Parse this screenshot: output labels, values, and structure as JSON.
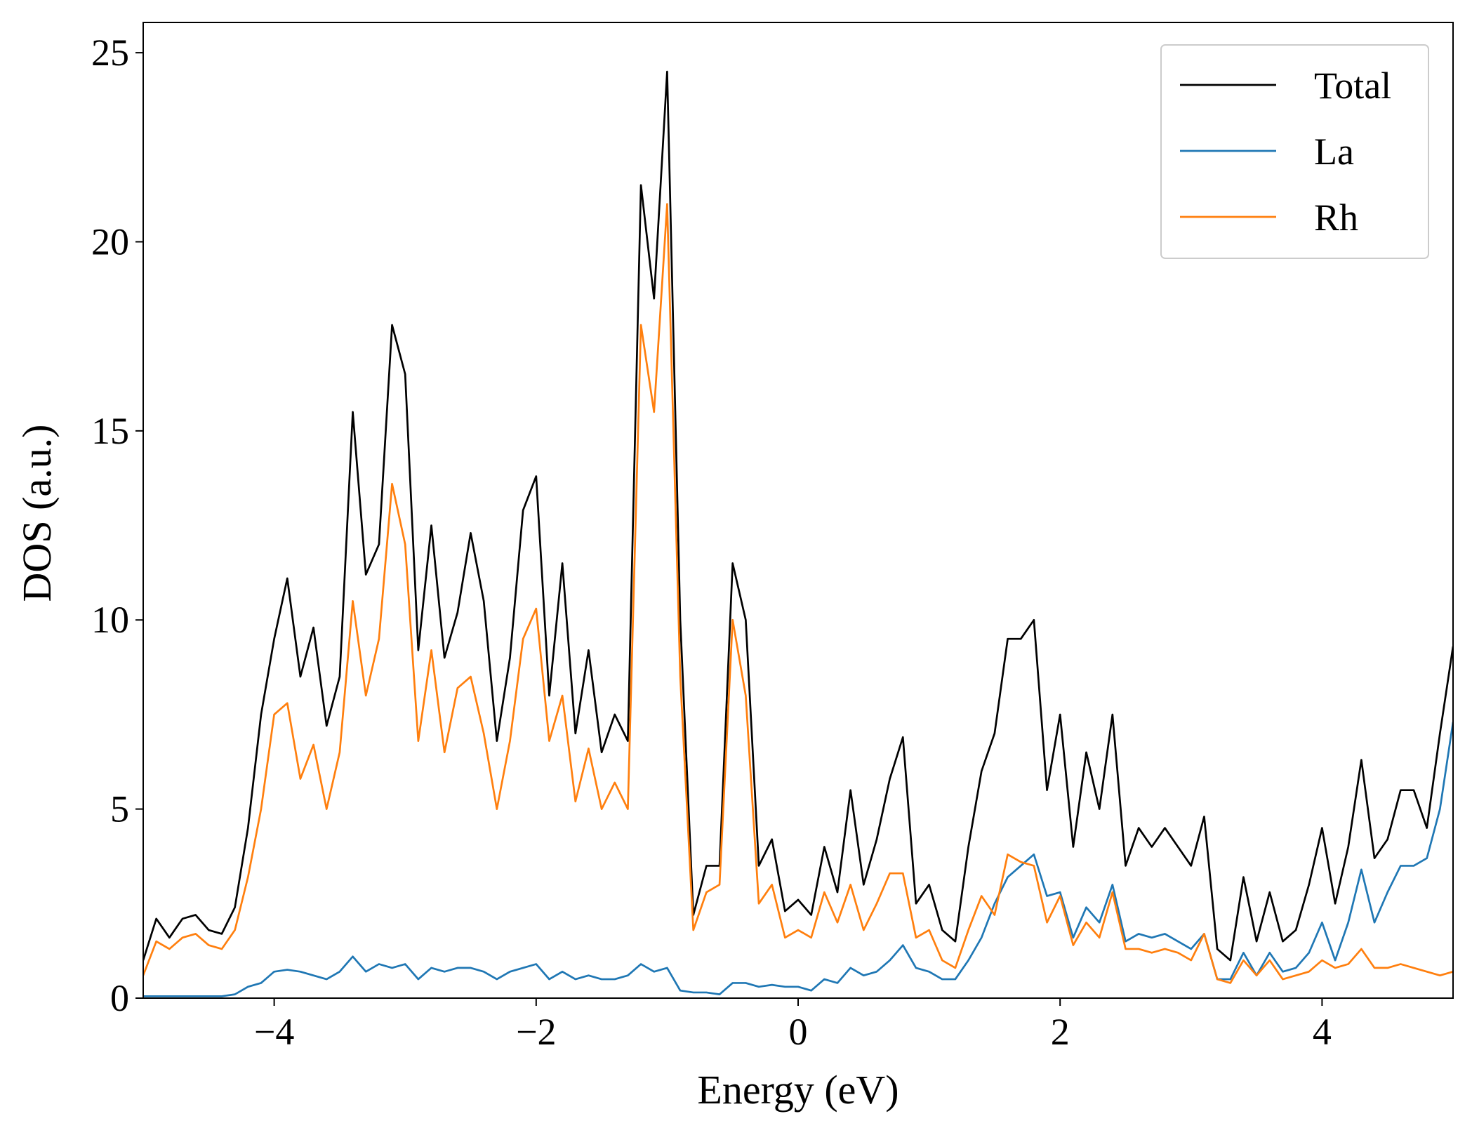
{
  "chart_data": {
    "type": "line",
    "xlabel": "Energy (eV)",
    "ylabel": "DOS (a.u.)",
    "x": [
      -5.0,
      -4.9,
      -4.8,
      -4.7,
      -4.6,
      -4.5,
      -4.4,
      -4.3,
      -4.2,
      -4.1,
      -4.0,
      -3.9,
      -3.8,
      -3.7,
      -3.6,
      -3.5,
      -3.4,
      -3.3,
      -3.2,
      -3.1,
      -3.0,
      -2.9,
      -2.8,
      -2.7,
      -2.6,
      -2.5,
      -2.4,
      -2.3,
      -2.2,
      -2.1,
      -2.0,
      -1.9,
      -1.8,
      -1.7,
      -1.6,
      -1.5,
      -1.4,
      -1.3,
      -1.2,
      -1.1,
      -1.0,
      -0.9,
      -0.8,
      -0.7,
      -0.6,
      -0.5,
      -0.4,
      -0.3,
      -0.2,
      -0.1,
      0.0,
      0.1,
      0.2,
      0.3,
      0.4,
      0.5,
      0.6,
      0.7,
      0.8,
      0.9,
      1.0,
      1.1,
      1.2,
      1.3,
      1.4,
      1.5,
      1.6,
      1.7,
      1.8,
      1.9,
      2.0,
      2.1,
      2.2,
      2.3,
      2.4,
      2.5,
      2.6,
      2.7,
      2.8,
      2.9,
      3.0,
      3.1,
      3.2,
      3.3,
      3.4,
      3.5,
      3.6,
      3.7,
      3.8,
      3.9,
      4.0,
      4.1,
      4.2,
      4.3,
      4.4,
      4.5,
      4.6,
      4.7,
      4.8,
      4.9,
      5.0
    ],
    "series": [
      {
        "name": "Total",
        "color": "#000000",
        "values": [
          1.0,
          2.1,
          1.6,
          2.1,
          2.2,
          1.8,
          1.7,
          2.4,
          4.5,
          7.5,
          9.5,
          11.1,
          8.5,
          9.8,
          7.2,
          8.5,
          15.5,
          11.2,
          12.0,
          17.8,
          16.5,
          9.2,
          12.5,
          9.0,
          10.2,
          12.3,
          10.5,
          6.8,
          9.0,
          12.9,
          13.8,
          8.0,
          11.5,
          7.0,
          9.2,
          6.5,
          7.5,
          6.8,
          21.5,
          18.5,
          24.5,
          10.0,
          2.2,
          3.5,
          3.5,
          11.5,
          10.0,
          3.5,
          4.2,
          2.3,
          2.6,
          2.2,
          4.0,
          2.8,
          5.5,
          3.0,
          4.2,
          5.8,
          6.9,
          2.5,
          3.0,
          1.8,
          1.5,
          4.0,
          6.0,
          7.0,
          9.5,
          9.5,
          10.0,
          5.5,
          7.5,
          4.0,
          6.5,
          5.0,
          7.5,
          3.5,
          4.5,
          4.0,
          4.5,
          4.0,
          3.5,
          4.8,
          1.3,
          1.0,
          3.2,
          1.5,
          2.8,
          1.5,
          1.8,
          3.0,
          4.5,
          2.5,
          4.0,
          6.3,
          3.7,
          4.2,
          5.5,
          5.5,
          4.5,
          7.0,
          9.3
        ]
      },
      {
        "name": "La",
        "color": "#1f77b4",
        "values": [
          0.05,
          0.05,
          0.05,
          0.05,
          0.05,
          0.05,
          0.05,
          0.1,
          0.3,
          0.4,
          0.7,
          0.75,
          0.7,
          0.6,
          0.5,
          0.7,
          1.1,
          0.7,
          0.9,
          0.8,
          0.9,
          0.5,
          0.8,
          0.7,
          0.8,
          0.8,
          0.7,
          0.5,
          0.7,
          0.8,
          0.9,
          0.5,
          0.7,
          0.5,
          0.6,
          0.5,
          0.5,
          0.6,
          0.9,
          0.7,
          0.8,
          0.2,
          0.15,
          0.15,
          0.1,
          0.4,
          0.4,
          0.3,
          0.35,
          0.3,
          0.3,
          0.2,
          0.5,
          0.4,
          0.8,
          0.6,
          0.7,
          1.0,
          1.4,
          0.8,
          0.7,
          0.5,
          0.5,
          1.0,
          1.6,
          2.5,
          3.2,
          3.5,
          3.8,
          2.7,
          2.8,
          1.6,
          2.4,
          2.0,
          3.0,
          1.5,
          1.7,
          1.6,
          1.7,
          1.5,
          1.3,
          1.7,
          0.5,
          0.5,
          1.2,
          0.6,
          1.2,
          0.7,
          0.8,
          1.2,
          2.0,
          1.0,
          2.0,
          3.4,
          2.0,
          2.8,
          3.5,
          3.5,
          3.7,
          5.0,
          7.3
        ]
      },
      {
        "name": "Rh",
        "color": "#ff7f0e",
        "values": [
          0.6,
          1.5,
          1.3,
          1.6,
          1.7,
          1.4,
          1.3,
          1.8,
          3.2,
          5.0,
          7.5,
          7.8,
          5.8,
          6.7,
          5.0,
          6.5,
          10.5,
          8.0,
          9.5,
          13.6,
          12.0,
          6.8,
          9.2,
          6.5,
          8.2,
          8.5,
          7.0,
          5.0,
          6.8,
          9.5,
          10.3,
          6.8,
          8.0,
          5.2,
          6.6,
          5.0,
          5.7,
          5.0,
          17.8,
          15.5,
          21.0,
          8.5,
          1.8,
          2.8,
          3.0,
          10.0,
          8.0,
          2.5,
          3.0,
          1.6,
          1.8,
          1.6,
          2.8,
          2.0,
          3.0,
          1.8,
          2.5,
          3.3,
          3.3,
          1.6,
          1.8,
          1.0,
          0.8,
          1.8,
          2.7,
          2.2,
          3.8,
          3.6,
          3.5,
          2.0,
          2.7,
          1.4,
          2.0,
          1.6,
          2.8,
          1.3,
          1.3,
          1.2,
          1.3,
          1.2,
          1.0,
          1.7,
          0.5,
          0.4,
          1.0,
          0.6,
          1.0,
          0.5,
          0.6,
          0.7,
          1.0,
          0.8,
          0.9,
          1.3,
          0.8,
          0.8,
          0.9,
          0.8,
          0.7,
          0.6,
          0.7
        ]
      }
    ],
    "xlim": [
      -5,
      5
    ],
    "xticks": [
      {
        "value": -4,
        "label": "−4"
      },
      {
        "value": -2,
        "label": "−2"
      },
      0,
      2,
      4
    ],
    "ylim": [
      0,
      25.8
    ],
    "yticks": [
      0,
      5,
      10,
      15,
      20,
      25
    ],
    "grid": false,
    "legend": "upper right"
  }
}
